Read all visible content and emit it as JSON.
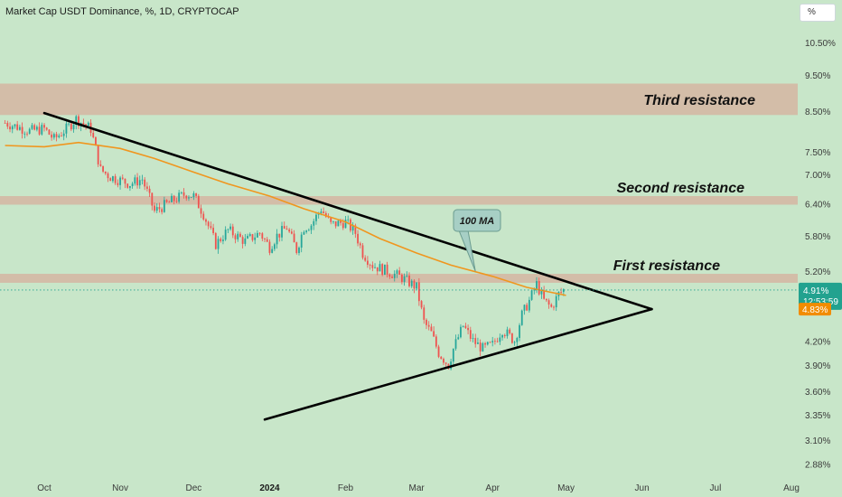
{
  "header": {
    "title": "Market Cap USDT Dominance, %, 1D, CRYPTOCAP"
  },
  "unit_button": {
    "label": "%"
  },
  "colors": {
    "background": "#c8e6c9",
    "zone": "#d4b8a4",
    "trendline": "#000000",
    "ma": "#f0961e",
    "up": "#26a69a",
    "down": "#ef5350",
    "last_price_tag": "#22a28f",
    "ma_tag": "#f28c00"
  },
  "chart_data": {
    "type": "candlestick",
    "title": "Market Cap USDT Dominance, %, 1D, CRYPTOCAP",
    "y_scale": "log",
    "ylim": [
      2.8,
      11.5
    ],
    "y_ticks": [
      "10.50%",
      "9.50%",
      "8.50%",
      "7.50%",
      "7.00%",
      "6.40%",
      "5.80%",
      "5.20%",
      "4.20%",
      "3.90%",
      "3.60%",
      "3.35%",
      "3.10%",
      "2.88%"
    ],
    "x_ticks": [
      {
        "date": "2023-10-01",
        "label": "Oct"
      },
      {
        "date": "2023-11-01",
        "label": "Nov"
      },
      {
        "date": "2023-12-01",
        "label": "Dec"
      },
      {
        "date": "2024-01-01",
        "label": "2024",
        "bold": true
      },
      {
        "date": "2024-02-01",
        "label": "Feb"
      },
      {
        "date": "2024-03-01",
        "label": "Mar"
      },
      {
        "date": "2024-04-01",
        "label": "Apr"
      },
      {
        "date": "2024-05-01",
        "label": "May"
      },
      {
        "date": "2024-06-01",
        "label": "Jun"
      },
      {
        "date": "2024-07-01",
        "label": "Jul"
      },
      {
        "date": "2024-08-01",
        "label": "Aug"
      }
    ],
    "price_path": [
      [
        "2023-09-15",
        8.2
      ],
      [
        "2023-09-25",
        8.0
      ],
      [
        "2023-10-01",
        8.05
      ],
      [
        "2023-10-05",
        7.8
      ],
      [
        "2023-10-10",
        8.05
      ],
      [
        "2023-10-14",
        8.3
      ],
      [
        "2023-10-20",
        8.05
      ],
      [
        "2023-10-24",
        7.1
      ],
      [
        "2023-10-28",
        6.95
      ],
      [
        "2023-11-05",
        6.8
      ],
      [
        "2023-11-10",
        6.9
      ],
      [
        "2023-11-15",
        6.25
      ],
      [
        "2023-11-22",
        6.45
      ],
      [
        "2023-11-28",
        6.6
      ],
      [
        "2023-12-01",
        6.55
      ],
      [
        "2023-12-05",
        6.2
      ],
      [
        "2023-12-10",
        5.65
      ],
      [
        "2023-12-15",
        5.9
      ],
      [
        "2023-12-22",
        5.7
      ],
      [
        "2023-12-28",
        5.85
      ],
      [
        "2024-01-01",
        5.6
      ],
      [
        "2024-01-04",
        5.8
      ],
      [
        "2024-01-08",
        5.95
      ],
      [
        "2024-01-12",
        5.55
      ],
      [
        "2024-01-15",
        5.95
      ],
      [
        "2024-01-18",
        6.0
      ],
      [
        "2024-01-22",
        6.3
      ],
      [
        "2024-01-26",
        6.0
      ],
      [
        "2024-02-01",
        6.05
      ],
      [
        "2024-02-05",
        5.85
      ],
      [
        "2024-02-08",
        5.5
      ],
      [
        "2024-02-12",
        5.3
      ],
      [
        "2024-02-18",
        5.2
      ],
      [
        "2024-02-24",
        5.1
      ],
      [
        "2024-03-01",
        4.95
      ],
      [
        "2024-03-04",
        4.45
      ],
      [
        "2024-03-07",
        4.3
      ],
      [
        "2024-03-10",
        4.05
      ],
      [
        "2024-03-14",
        3.9
      ],
      [
        "2024-03-16",
        4.1
      ],
      [
        "2024-03-20",
        4.4
      ],
      [
        "2024-03-24",
        4.2
      ],
      [
        "2024-03-28",
        4.1
      ],
      [
        "2024-04-01",
        4.15
      ],
      [
        "2024-04-05",
        4.35
      ],
      [
        "2024-04-10",
        4.2
      ],
      [
        "2024-04-13",
        4.55
      ],
      [
        "2024-04-16",
        4.75
      ],
      [
        "2024-04-19",
        5.0
      ],
      [
        "2024-04-22",
        4.75
      ],
      [
        "2024-04-25",
        4.65
      ],
      [
        "2024-04-28",
        4.85
      ],
      [
        "2024-04-30",
        4.91
      ]
    ],
    "ma_100": {
      "name": "100 MA",
      "points": [
        [
          "2023-09-15",
          7.65
        ],
        [
          "2023-10-01",
          7.62
        ],
        [
          "2023-10-15",
          7.72
        ],
        [
          "2023-11-01",
          7.58
        ],
        [
          "2023-11-15",
          7.35
        ],
        [
          "2023-12-01",
          7.05
        ],
        [
          "2023-12-15",
          6.8
        ],
        [
          "2024-01-01",
          6.55
        ],
        [
          "2024-01-15",
          6.3
        ],
        [
          "2024-02-01",
          6.05
        ],
        [
          "2024-02-15",
          5.75
        ],
        [
          "2024-03-01",
          5.5
        ],
        [
          "2024-03-15",
          5.3
        ],
        [
          "2024-04-01",
          5.12
        ],
        [
          "2024-04-15",
          4.95
        ],
        [
          "2024-05-01",
          4.83
        ]
      ]
    },
    "trendlines": [
      {
        "name": "descending resistance",
        "from": [
          "2023-10-01",
          8.45
        ],
        "to": [
          "2024-06-05",
          4.63
        ]
      },
      {
        "name": "ascending support",
        "from": [
          "2023-12-30",
          3.3
        ],
        "to": [
          "2024-06-05",
          4.63
        ]
      }
    ],
    "zones": [
      {
        "label": "Third resistance",
        "low": 8.4,
        "high": 9.25
      },
      {
        "label": "Second resistance",
        "low": 6.38,
        "high": 6.55
      },
      {
        "label": "First resistance",
        "low": 5.02,
        "high": 5.16
      }
    ],
    "annotations": [
      {
        "text": "100 MA",
        "target": [
          "2024-03-25",
          5.2
        ]
      }
    ],
    "last_price": {
      "value": "4.91%",
      "countdown": "12:53:59"
    },
    "ma_value": "4.83%"
  }
}
